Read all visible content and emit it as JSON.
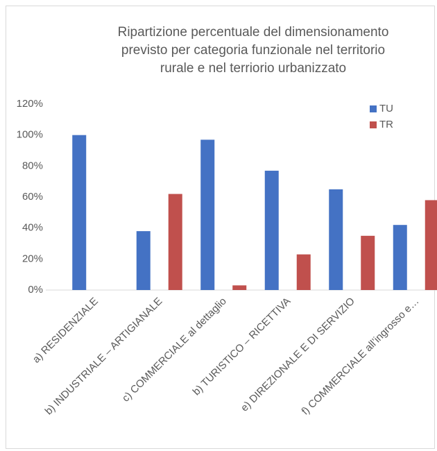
{
  "chart_data": {
    "type": "bar",
    "title": "Ripartizione percentuale del dimensionamento previsto per categoria funzionale nel territorio rurale e nel terriorio urbanizzato",
    "categories": [
      "a) RESIDENZIALE",
      "b) INDUSTRIALE – ARTIGIANALE",
      "c) COMMERCIALE al dettaglio",
      "b) TURISTICO – RICETTIVA",
      "e) DIREZIONALE E DI SERVIZIO",
      "f) COMMERCIALE all’ingrosso e…"
    ],
    "series": [
      {
        "name": "TU",
        "color": "#4472c4",
        "values": [
          100,
          38,
          97,
          77,
          65,
          42
        ]
      },
      {
        "name": "TR",
        "color": "#c0504d",
        "values": [
          0,
          62,
          3,
          23,
          35,
          58
        ]
      }
    ],
    "ylim": [
      0,
      120
    ],
    "yticks": [
      {
        "value": 0,
        "label": "0%"
      },
      {
        "value": 20,
        "label": "20%"
      },
      {
        "value": 40,
        "label": "40%"
      },
      {
        "value": 60,
        "label": "60%"
      },
      {
        "value": 80,
        "label": "80%"
      },
      {
        "value": 100,
        "label": "100%"
      },
      {
        "value": 120,
        "label": "120%"
      }
    ],
    "grid": false,
    "legend": "top-right"
  }
}
